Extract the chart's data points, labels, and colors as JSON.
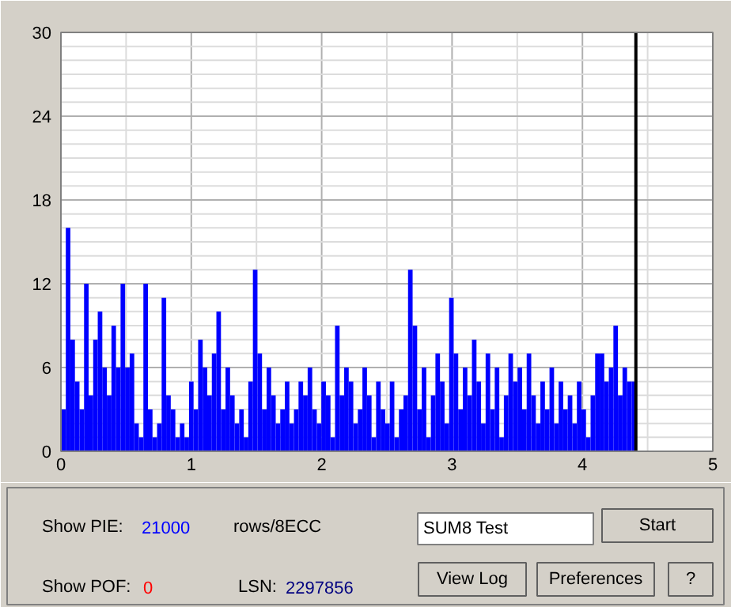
{
  "chart_data": {
    "type": "bar",
    "x": [
      0.02,
      0.055,
      0.09,
      0.125,
      0.16,
      0.195,
      0.23,
      0.265,
      0.3,
      0.335,
      0.37,
      0.405,
      0.44,
      0.475,
      0.51,
      0.545,
      0.58,
      0.615,
      0.65,
      0.685,
      0.72,
      0.755,
      0.79,
      0.825,
      0.86,
      0.895,
      0.93,
      0.965,
      1.0,
      1.035,
      1.07,
      1.105,
      1.14,
      1.175,
      1.21,
      1.245,
      1.28,
      1.315,
      1.35,
      1.385,
      1.42,
      1.455,
      1.49,
      1.525,
      1.56,
      1.595,
      1.63,
      1.665,
      1.7,
      1.735,
      1.77,
      1.805,
      1.84,
      1.875,
      1.91,
      1.945,
      1.98,
      2.015,
      2.05,
      2.085,
      2.12,
      2.155,
      2.19,
      2.225,
      2.26,
      2.295,
      2.33,
      2.365,
      2.4,
      2.435,
      2.47,
      2.505,
      2.54,
      2.575,
      2.61,
      2.645,
      2.68,
      2.715,
      2.75,
      2.785,
      2.82,
      2.855,
      2.89,
      2.925,
      2.96,
      2.995,
      3.03,
      3.065,
      3.1,
      3.135,
      3.17,
      3.205,
      3.24,
      3.275,
      3.31,
      3.345,
      3.38,
      3.415,
      3.45,
      3.485,
      3.52,
      3.555,
      3.59,
      3.625,
      3.66,
      3.695,
      3.73,
      3.765,
      3.8,
      3.835,
      3.87,
      3.905,
      3.94,
      3.975,
      4.01,
      4.045,
      4.08,
      4.115,
      4.15,
      4.185,
      4.22,
      4.255,
      4.29,
      4.325,
      4.36,
      4.395
    ],
    "series": [
      {
        "color": "#0000ff",
        "values": [
          3,
          16,
          8,
          5,
          3,
          12,
          4,
          8,
          10,
          6,
          4,
          9,
          6,
          12,
          6,
          7,
          2,
          1,
          12,
          3,
          1,
          2,
          11,
          4,
          3,
          1,
          2,
          1,
          5,
          3,
          8,
          6,
          4,
          7,
          10,
          3,
          6,
          4,
          2,
          3,
          1,
          5,
          13,
          7,
          3,
          6,
          4,
          2,
          3,
          5,
          2,
          3,
          5,
          4,
          6,
          3,
          2,
          5,
          4,
          1,
          9,
          4,
          6,
          5,
          2,
          3,
          6,
          4,
          1,
          5,
          3,
          2,
          5,
          1,
          3,
          4,
          13,
          9,
          3,
          6,
          1,
          4,
          7,
          5,
          2,
          11,
          7,
          3,
          6,
          4,
          8,
          5,
          2,
          7,
          3,
          6,
          1,
          4,
          7,
          5,
          6,
          3,
          7,
          4,
          2,
          5,
          3,
          6,
          2,
          5,
          3,
          4,
          2,
          5,
          3,
          1,
          4,
          7,
          7,
          5,
          6,
          9,
          4,
          6,
          5,
          5
        ]
      }
    ],
    "xlim": [
      0,
      5
    ],
    "xticks": [
      0,
      1,
      2,
      3,
      4,
      5
    ],
    "ylim": [
      0,
      30
    ],
    "yticks": [
      0,
      6,
      12,
      18,
      24,
      30
    ],
    "grid": true,
    "ref_lines": [
      {
        "axis": "x",
        "value": 4.41,
        "color": "#000000"
      }
    ],
    "annotations": [
      "Show PIE:",
      "21000",
      "rows/8ECC",
      "Show POF:",
      "0",
      "LSN:",
      "2297856",
      "SUM8 Test",
      "Start",
      "View Log",
      "Preferences",
      "?"
    ]
  }
}
